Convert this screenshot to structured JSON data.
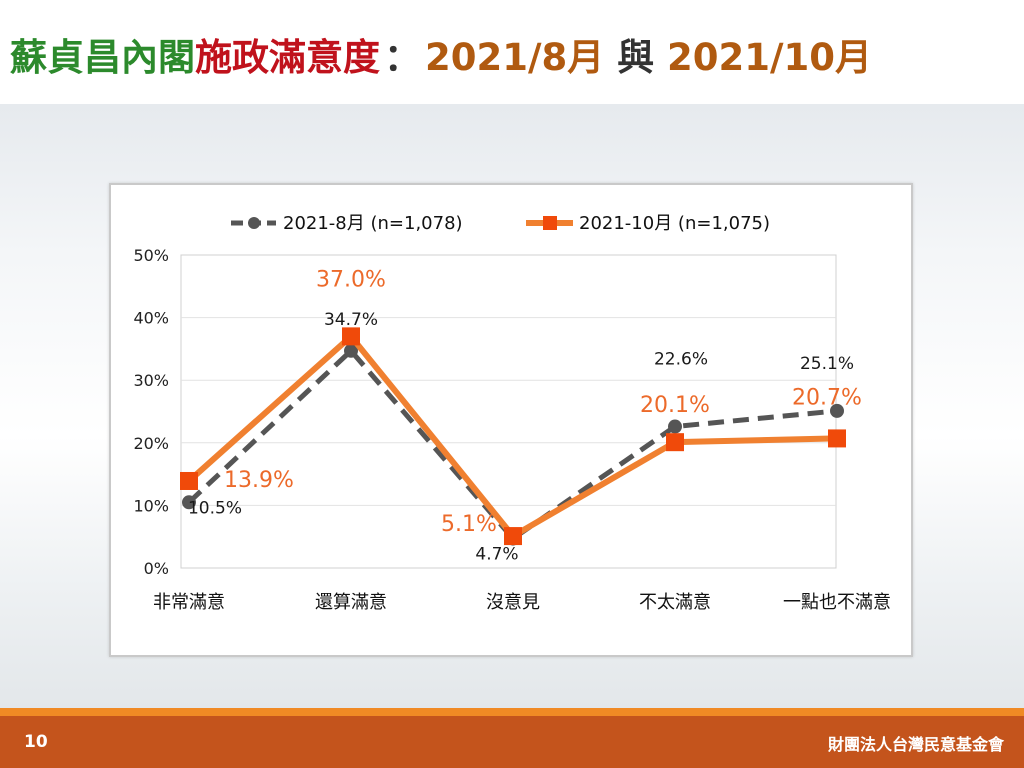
{
  "title": {
    "part1": "蘇貞昌內閣",
    "part2": "施政滿意度",
    "sep": "：",
    "part3": "2021/8月",
    "part4": "與",
    "part5": "2021/10月"
  },
  "footer": {
    "page_number": "10",
    "organization": "財團法人台灣民意基金會"
  },
  "chart_data": {
    "type": "line",
    "categories": [
      "非常滿意",
      "還算滿意",
      "沒意見",
      "不太滿意",
      "一點也不滿意"
    ],
    "series": [
      {
        "name": "2021-8月  (n=1,078)",
        "values": [
          10.5,
          34.7,
          4.7,
          22.6,
          25.1
        ],
        "labels": [
          "10.5%",
          "34.7%",
          "4.7%",
          "22.6%",
          "25.1%"
        ],
        "color": "#555555",
        "style": "dashed",
        "marker": "circle"
      },
      {
        "name": "2021-10月  (n=1,075)",
        "values": [
          13.9,
          37.0,
          5.1,
          20.1,
          20.7
        ],
        "labels": [
          "13.9%",
          "37.0%",
          "5.1%",
          "20.1%",
          "20.7%"
        ],
        "color": "#f08030",
        "style": "solid",
        "marker": "square",
        "marker_color": "#f04a0a",
        "label_color": "#ec6a2a"
      }
    ],
    "yticks": [
      "0%",
      "10%",
      "20%",
      "30%",
      "40%",
      "50%"
    ],
    "ylim": [
      0,
      50
    ],
    "grid": true,
    "legend": "top"
  }
}
